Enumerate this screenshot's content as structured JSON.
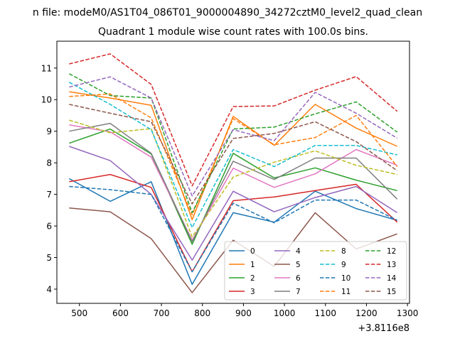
{
  "chart_data": {
    "type": "line",
    "suptitle": "n file: modeM0/AS1T04_086T01_9000004890_34272cztM0_level2_quad_clean",
    "title": "Quadrant 1 module wise count rates with 100.0s bins.",
    "xlabel": "",
    "ylabel": "",
    "x_offset_label": "+3.8116e8",
    "x_offset": 381160000,
    "x": [
      475,
      575,
      675,
      775,
      875,
      975,
      1075,
      1175,
      1275
    ],
    "xlim": [
      445,
      1305
    ],
    "ylim": [
      3.55,
      11.85
    ],
    "xticks": [
      500,
      600,
      700,
      800,
      900,
      1000,
      1100,
      1200,
      1300
    ],
    "yticks": [
      4,
      5,
      6,
      7,
      8,
      9,
      10,
      11
    ],
    "grid": false,
    "legend": {
      "position": "lower-right",
      "columns": 4
    },
    "series": [
      {
        "name": "0",
        "color": "#1f77b4",
        "style": "solid",
        "values": [
          7.5,
          6.78,
          7.4,
          4.15,
          6.42,
          6.12,
          7.1,
          6.55,
          6.18
        ]
      },
      {
        "name": "1",
        "color": "#ff7f0e",
        "style": "solid",
        "values": [
          10.25,
          10.05,
          9.82,
          6.2,
          9.47,
          8.55,
          9.85,
          9.1,
          8.52
        ]
      },
      {
        "name": "2",
        "color": "#2ca02c",
        "style": "solid",
        "values": [
          8.62,
          9.07,
          8.28,
          5.42,
          8.3,
          7.52,
          7.84,
          7.45,
          7.12
        ]
      },
      {
        "name": "3",
        "color": "#d62728",
        "style": "solid",
        "values": [
          7.4,
          7.63,
          7.22,
          4.55,
          6.8,
          6.92,
          7.12,
          7.32,
          6.12
        ]
      },
      {
        "name": "4",
        "color": "#9467bd",
        "style": "solid",
        "values": [
          8.52,
          8.07,
          7.0,
          4.92,
          7.1,
          6.45,
          6.9,
          7.25,
          6.42
        ]
      },
      {
        "name": "5",
        "color": "#8c564b",
        "style": "solid",
        "values": [
          6.57,
          6.45,
          5.6,
          3.89,
          5.55,
          4.72,
          6.42,
          5.27,
          5.75
        ]
      },
      {
        "name": "6",
        "color": "#e377c2",
        "style": "solid",
        "values": [
          9.2,
          8.98,
          8.18,
          5.55,
          7.83,
          7.22,
          7.65,
          8.42,
          7.92
        ]
      },
      {
        "name": "7",
        "color": "#7f7f7f",
        "style": "solid",
        "values": [
          9.0,
          9.25,
          8.3,
          5.5,
          8.05,
          7.47,
          8.15,
          8.15,
          6.85
        ]
      },
      {
        "name": "8",
        "color": "#bcbd22",
        "style": "dashed",
        "values": [
          9.35,
          8.95,
          9.08,
          5.65,
          7.55,
          8.02,
          8.38,
          7.92,
          7.63
        ]
      },
      {
        "name": "9",
        "color": "#17becf",
        "style": "dashed",
        "values": [
          10.55,
          9.85,
          9.05,
          5.95,
          8.42,
          7.88,
          8.55,
          8.55,
          8.25
        ]
      },
      {
        "name": "10",
        "color": "#1f77b4",
        "style": "dashed",
        "values": [
          7.25,
          7.15,
          7.0,
          4.55,
          6.72,
          6.1,
          6.82,
          6.82,
          6.18
        ]
      },
      {
        "name": "11",
        "color": "#ff7f0e",
        "style": "dashed",
        "values": [
          10.1,
          10.18,
          9.42,
          6.35,
          9.4,
          8.57,
          8.8,
          9.5,
          7.88
        ]
      },
      {
        "name": "12",
        "color": "#2ca02c",
        "style": "dashed",
        "values": [
          10.82,
          10.13,
          10.05,
          6.42,
          9.07,
          9.13,
          9.55,
          9.93,
          8.97
        ]
      },
      {
        "name": "13",
        "color": "#d62728",
        "style": "dashed",
        "values": [
          11.13,
          11.45,
          10.48,
          7.27,
          9.78,
          9.8,
          10.3,
          10.73,
          9.63
        ]
      },
      {
        "name": "14",
        "color": "#9467bd",
        "style": "dashed",
        "values": [
          10.4,
          10.72,
          10.05,
          6.95,
          9.05,
          8.7,
          10.23,
          9.57,
          8.78
        ]
      },
      {
        "name": "15",
        "color": "#8c564b",
        "style": "dashed",
        "values": [
          9.85,
          9.57,
          9.3,
          6.7,
          8.77,
          8.93,
          9.3,
          8.67,
          7.75
        ]
      }
    ]
  }
}
